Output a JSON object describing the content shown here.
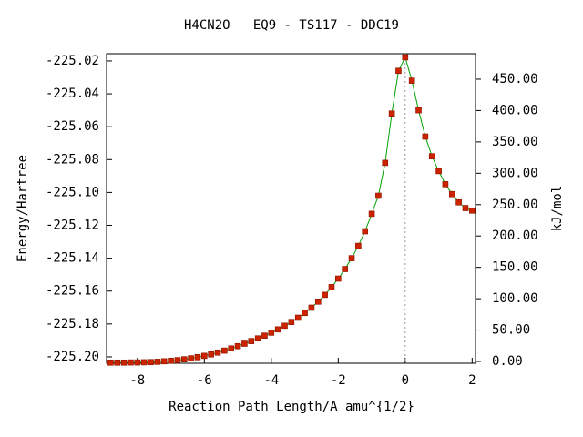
{
  "chart_data": {
    "type": "line",
    "title": "H4CN2O   EQ9 - TS117 - DDC19",
    "xlabel": "Reaction Path Length/A amu^{1/2}",
    "ylabel": "Energy/Hartree",
    "y2label": "kJ/mol",
    "xlim": [
      -8.92,
      2.1
    ],
    "ylim": [
      -225.2039,
      -225.0156
    ],
    "y2lim": [
      -2.9,
      490.6
    ],
    "xticks": [
      -8,
      -6,
      -4,
      -2,
      0,
      2
    ],
    "yticks": [
      {
        "value": -225.2,
        "label": "-225.20"
      },
      -225.18,
      -225.16,
      -225.14,
      -225.12,
      {
        "value": -225.1,
        "label": "-225.10"
      },
      -225.08,
      -225.06,
      -225.04,
      -225.02
    ],
    "y2ticks": [
      {
        "value": 0,
        "label": "0.00"
      },
      {
        "value": 50,
        "label": "50.00"
      },
      {
        "value": 100,
        "label": "100.00"
      },
      {
        "value": 150,
        "label": "150.00"
      },
      {
        "value": 200,
        "label": "200.00"
      },
      {
        "value": 250,
        "label": "250.00"
      },
      {
        "value": 300,
        "label": "300.00"
      },
      {
        "value": 350,
        "label": "350.00"
      },
      {
        "value": 400,
        "label": "400.00"
      },
      {
        "value": 450,
        "label": "450.00"
      }
    ],
    "line_color": "#00a000",
    "marker_color": "#cc2200",
    "x": [
      -8.8,
      -8.6,
      -8.4,
      -8.2,
      -8.0,
      -7.8,
      -7.6,
      -7.4,
      -7.2,
      -7.0,
      -6.8,
      -6.6,
      -6.4,
      -6.2,
      -6.0,
      -5.8,
      -5.6,
      -5.4,
      -5.2,
      -5.0,
      -4.8,
      -4.6,
      -4.4,
      -4.2,
      -4.0,
      -3.8,
      -3.6,
      -3.4,
      -3.2,
      -3.0,
      -2.8,
      -2.6,
      -2.4,
      -2.2,
      -2.0,
      -1.8,
      -1.6,
      -1.4,
      -1.2,
      -1.0,
      -0.8,
      -0.6,
      -0.4,
      -0.2,
      0.0,
      0.2,
      0.4,
      0.6,
      0.8,
      1.0,
      1.2,
      1.4,
      1.6,
      1.8,
      2.0
    ],
    "values": [
      -225.2035,
      -225.2035,
      -225.2035,
      -225.2034,
      -225.2034,
      -225.2033,
      -225.2032,
      -225.203,
      -225.2027,
      -225.2024,
      -225.202,
      -225.2015,
      -225.2009,
      -225.2002,
      -225.1994,
      -225.1985,
      -225.1974,
      -225.1962,
      -225.1949,
      -225.1935,
      -225.192,
      -225.1904,
      -225.1888,
      -225.1871,
      -225.1853,
      -225.1833,
      -225.1811,
      -225.1788,
      -225.1762,
      -225.1733,
      -225.1701,
      -225.1664,
      -225.1623,
      -225.1576,
      -225.1524,
      -225.1466,
      -225.14,
      -225.1325,
      -225.1236,
      -225.113,
      -225.102,
      -225.082,
      -225.052,
      -225.026,
      -225.0178,
      -225.032,
      -225.05,
      -225.066,
      -225.078,
      -225.087,
      -225.095,
      -225.101,
      -225.106,
      -225.1095,
      -225.111
    ]
  }
}
